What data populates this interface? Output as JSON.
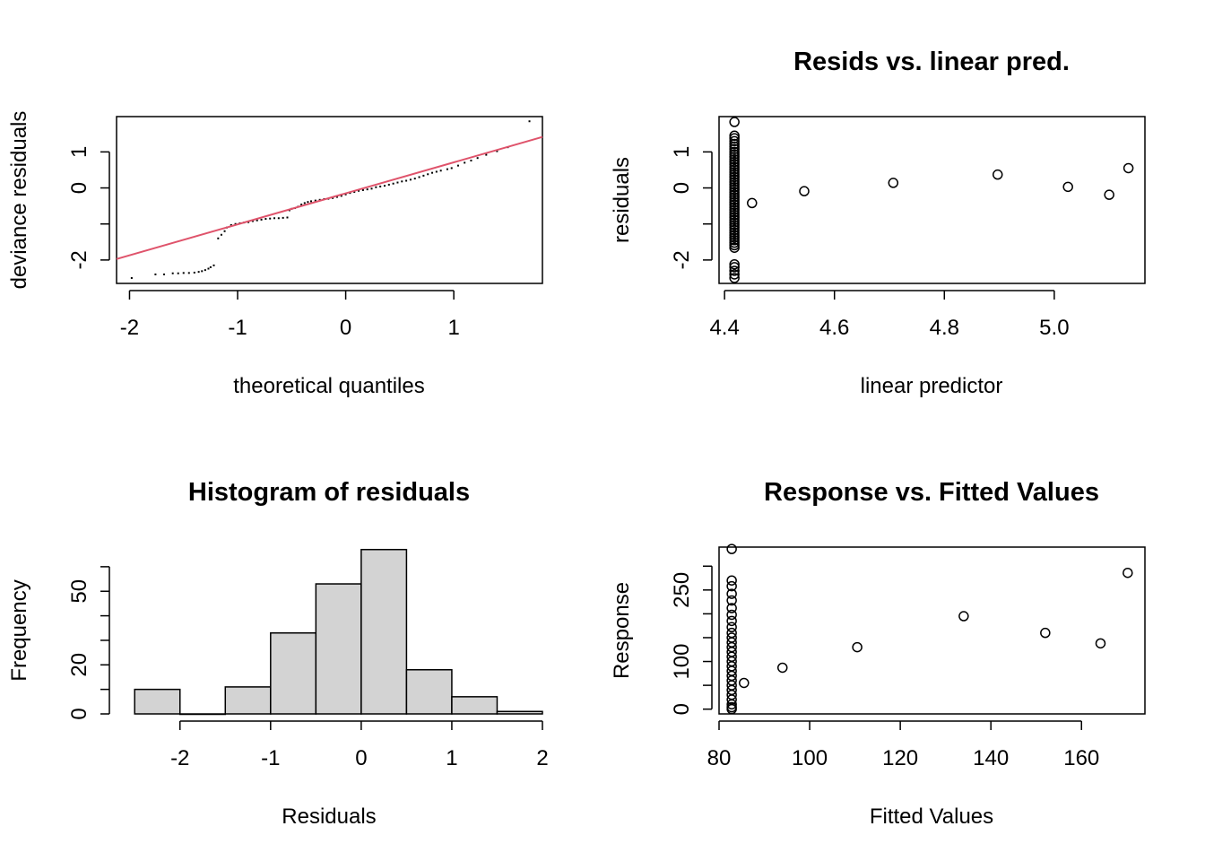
{
  "chart_data": [
    {
      "id": "qq",
      "type": "scatter",
      "title": "",
      "xlabel": "theoretical quantiles",
      "ylabel": "deviance residuals",
      "xlim": [
        -2.12,
        1.82
      ],
      "ylim": [
        -2.65,
        1.98
      ],
      "xticks": [
        -2,
        -1,
        0,
        1
      ],
      "xtick_labels": [
        "-2",
        "-1",
        "0",
        "1"
      ],
      "yticks": [
        -2,
        -1,
        0,
        1
      ],
      "ytick_labels": [
        "-2",
        "",
        "0",
        "1"
      ],
      "point_style": "dot",
      "points": [
        [
          -1.98,
          -2.5
        ],
        [
          -1.76,
          -2.4
        ],
        [
          -1.68,
          -2.4
        ],
        [
          -1.6,
          -2.37
        ],
        [
          -1.55,
          -2.37
        ],
        [
          -1.5,
          -2.36
        ],
        [
          -1.45,
          -2.36
        ],
        [
          -1.4,
          -2.35
        ],
        [
          -1.36,
          -2.33
        ],
        [
          -1.33,
          -2.31
        ],
        [
          -1.3,
          -2.28
        ],
        [
          -1.27,
          -2.24
        ],
        [
          -1.25,
          -2.2
        ],
        [
          -1.22,
          -2.15
        ],
        [
          -1.18,
          -1.4
        ],
        [
          -1.15,
          -1.3
        ],
        [
          -1.12,
          -1.2
        ],
        [
          -1.1,
          -1.1
        ],
        [
          -1.06,
          -1.03
        ],
        [
          -1.02,
          -1.0
        ],
        [
          -0.98,
          -0.98
        ],
        [
          -0.94,
          -0.96
        ],
        [
          -0.9,
          -0.95
        ],
        [
          -0.86,
          -0.92
        ],
        [
          -0.82,
          -0.9
        ],
        [
          -0.78,
          -0.88
        ],
        [
          -0.74,
          -0.86
        ],
        [
          -0.7,
          -0.85
        ],
        [
          -0.66,
          -0.84
        ],
        [
          -0.62,
          -0.84
        ],
        [
          -0.58,
          -0.83
        ],
        [
          -0.54,
          -0.82
        ],
        [
          -0.52,
          -0.62
        ],
        [
          -0.5,
          -0.58
        ],
        [
          -0.47,
          -0.56
        ],
        [
          -0.44,
          -0.52
        ],
        [
          -0.41,
          -0.46
        ],
        [
          -0.38,
          -0.42
        ],
        [
          -0.35,
          -0.39
        ],
        [
          -0.32,
          -0.37
        ],
        [
          -0.28,
          -0.35
        ],
        [
          -0.24,
          -0.33
        ],
        [
          -0.2,
          -0.31
        ],
        [
          -0.16,
          -0.3
        ],
        [
          -0.12,
          -0.28
        ],
        [
          -0.08,
          -0.25
        ],
        [
          -0.04,
          -0.22
        ],
        [
          0.0,
          -0.18
        ],
        [
          0.04,
          -0.14
        ],
        [
          0.08,
          -0.11
        ],
        [
          0.12,
          -0.08
        ],
        [
          0.16,
          -0.06
        ],
        [
          0.2,
          -0.04
        ],
        [
          0.24,
          -0.02
        ],
        [
          0.28,
          0.02
        ],
        [
          0.32,
          0.04
        ],
        [
          0.36,
          0.06
        ],
        [
          0.4,
          0.09
        ],
        [
          0.44,
          0.12
        ],
        [
          0.48,
          0.15
        ],
        [
          0.52,
          0.18
        ],
        [
          0.56,
          0.2
        ],
        [
          0.6,
          0.23
        ],
        [
          0.64,
          0.26
        ],
        [
          0.68,
          0.3
        ],
        [
          0.72,
          0.34
        ],
        [
          0.76,
          0.38
        ],
        [
          0.8,
          0.42
        ],
        [
          0.84,
          0.45
        ],
        [
          0.88,
          0.48
        ],
        [
          0.94,
          0.52
        ],
        [
          0.98,
          0.55
        ],
        [
          1.04,
          0.62
        ],
        [
          1.1,
          0.7
        ],
        [
          1.16,
          0.76
        ],
        [
          1.22,
          0.83
        ],
        [
          1.3,
          0.92
        ],
        [
          1.4,
          1.02
        ],
        [
          1.5,
          1.13
        ],
        [
          1.7,
          1.85
        ]
      ],
      "ref_line": {
        "slope": 0.86,
        "intercept": -0.15,
        "color": "#DF536B"
      }
    },
    {
      "id": "resid",
      "type": "scatter",
      "title": "Resids vs. linear pred.",
      "xlabel": "linear predictor",
      "ylabel": "residuals",
      "xlim": [
        4.39,
        5.165
      ],
      "ylim": [
        -2.65,
        1.98
      ],
      "xticks": [
        4.4,
        4.6,
        4.8,
        5.0
      ],
      "xtick_labels": [
        "4.4",
        "4.6",
        "4.8",
        "5.0"
      ],
      "yticks": [
        -2,
        -1,
        0,
        1
      ],
      "ytick_labels": [
        "-2",
        "",
        "0",
        "1"
      ],
      "point_style": "circle",
      "points": [
        [
          4.418,
          1.83
        ],
        [
          4.418,
          1.45
        ],
        [
          4.418,
          1.38
        ],
        [
          4.418,
          1.3
        ],
        [
          4.418,
          1.22
        ],
        [
          4.418,
          1.15
        ],
        [
          4.418,
          1.08
        ],
        [
          4.418,
          1.0
        ],
        [
          4.418,
          0.93
        ],
        [
          4.418,
          0.86
        ],
        [
          4.418,
          0.79
        ],
        [
          4.418,
          0.72
        ],
        [
          4.418,
          0.65
        ],
        [
          4.418,
          0.58
        ],
        [
          4.418,
          0.51
        ],
        [
          4.418,
          0.44
        ],
        [
          4.418,
          0.37
        ],
        [
          4.418,
          0.3
        ],
        [
          4.418,
          0.23
        ],
        [
          4.418,
          0.16
        ],
        [
          4.418,
          0.09
        ],
        [
          4.418,
          0.02
        ],
        [
          4.418,
          -0.05
        ],
        [
          4.418,
          -0.12
        ],
        [
          4.418,
          -0.19
        ],
        [
          4.418,
          -0.26
        ],
        [
          4.418,
          -0.33
        ],
        [
          4.418,
          -0.4
        ],
        [
          4.418,
          -0.47
        ],
        [
          4.418,
          -0.54
        ],
        [
          4.418,
          -0.61
        ],
        [
          4.418,
          -0.68
        ],
        [
          4.418,
          -0.75
        ],
        [
          4.418,
          -0.82
        ],
        [
          4.418,
          -0.89
        ],
        [
          4.418,
          -0.96
        ],
        [
          4.418,
          -1.03
        ],
        [
          4.418,
          -1.1
        ],
        [
          4.418,
          -1.17
        ],
        [
          4.418,
          -1.24
        ],
        [
          4.418,
          -1.31
        ],
        [
          4.418,
          -1.38
        ],
        [
          4.418,
          -1.45
        ],
        [
          4.418,
          -1.52
        ],
        [
          4.418,
          -1.59
        ],
        [
          4.418,
          -1.66
        ],
        [
          4.418,
          -2.12
        ],
        [
          4.418,
          -2.2
        ],
        [
          4.418,
          -2.3
        ],
        [
          4.418,
          -2.4
        ],
        [
          4.418,
          -2.5
        ],
        [
          4.45,
          -0.42
        ],
        [
          4.545,
          -0.09
        ],
        [
          4.707,
          0.14
        ],
        [
          4.897,
          0.37
        ],
        [
          5.025,
          0.03
        ],
        [
          5.1,
          -0.19
        ],
        [
          5.135,
          0.55
        ]
      ]
    },
    {
      "id": "hist",
      "type": "bar",
      "title": "Histogram of residuals",
      "xlabel": "Residuals",
      "ylabel": "Frequency",
      "xlim": [
        -2.7,
        2.0
      ],
      "ylim": [
        0,
        68
      ],
      "xticks": [
        -2,
        -1,
        0,
        1,
        2
      ],
      "xtick_labels": [
        "-2",
        "-1",
        "0",
        "1",
        "2"
      ],
      "yticks": [
        0,
        10,
        20,
        30,
        40,
        50,
        60
      ],
      "ytick_labels": [
        "0",
        "",
        "20",
        "",
        "",
        "50",
        ""
      ],
      "bin_edges": [
        -2.5,
        -2.0,
        -1.5,
        -1.0,
        -0.5,
        0.0,
        0.5,
        1.0,
        1.5,
        2.0
      ],
      "counts": [
        10,
        0,
        11,
        33,
        53,
        67,
        18,
        7,
        1
      ],
      "fill": "#D3D3D3"
    },
    {
      "id": "resp",
      "type": "scatter",
      "title": "Response vs. Fitted Values",
      "xlabel": "Fitted Values",
      "ylabel": "Response",
      "xlim": [
        80,
        174
      ],
      "ylim": [
        -10,
        340
      ],
      "xticks": [
        80,
        100,
        120,
        140,
        160
      ],
      "xtick_labels": [
        "80",
        "100",
        "120",
        "140",
        "160"
      ],
      "yticks": [
        0,
        50,
        100,
        150,
        200,
        250,
        300
      ],
      "ytick_labels": [
        "0",
        "",
        "100",
        "",
        "",
        "250",
        ""
      ],
      "point_style": "circle",
      "points": [
        [
          82.8,
          336
        ],
        [
          82.8,
          270
        ],
        [
          82.8,
          258
        ],
        [
          82.8,
          242
        ],
        [
          82.8,
          228
        ],
        [
          82.8,
          212
        ],
        [
          82.8,
          198
        ],
        [
          82.8,
          185
        ],
        [
          82.8,
          172
        ],
        [
          82.8,
          160
        ],
        [
          82.8,
          150
        ],
        [
          82.8,
          140
        ],
        [
          82.8,
          130
        ],
        [
          82.8,
          120
        ],
        [
          82.8,
          110
        ],
        [
          82.8,
          100
        ],
        [
          82.8,
          90
        ],
        [
          82.8,
          80
        ],
        [
          82.8,
          70
        ],
        [
          82.8,
          60
        ],
        [
          82.8,
          50
        ],
        [
          82.8,
          40
        ],
        [
          82.8,
          30
        ],
        [
          82.8,
          20
        ],
        [
          82.8,
          10
        ],
        [
          82.8,
          4
        ],
        [
          82.8,
          0
        ],
        [
          85.5,
          55
        ],
        [
          94.0,
          87
        ],
        [
          110.5,
          130
        ],
        [
          134.0,
          195
        ],
        [
          152.0,
          160
        ],
        [
          164.2,
          138
        ],
        [
          170.2,
          286
        ]
      ]
    }
  ]
}
